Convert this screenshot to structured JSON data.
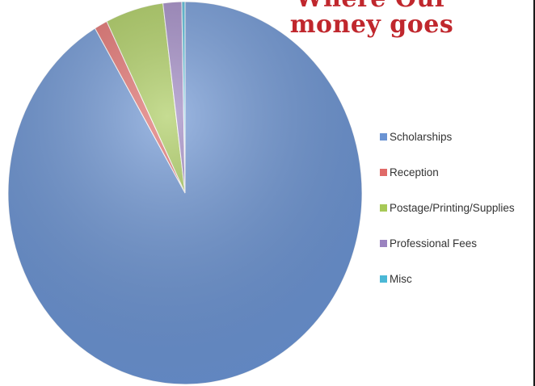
{
  "title": [
    "Where Our",
    "money goes"
  ],
  "chart_data": {
    "type": "pie",
    "title": "Where Our money goes",
    "legend_position": "right",
    "slices": [
      {
        "label": "Scholarships",
        "value": 91.5,
        "color": "#6a93d3"
      },
      {
        "label": "Reception",
        "value": 1.2,
        "color": "#e06a68"
      },
      {
        "label": "Postage/Printing/Supplies",
        "value": 5.3,
        "color": "#a7c957"
      },
      {
        "label": "Professional Fees",
        "value": 1.7,
        "color": "#9b83c0"
      },
      {
        "label": "Misc",
        "value": 0.3,
        "color": "#4bb8d6"
      }
    ]
  }
}
